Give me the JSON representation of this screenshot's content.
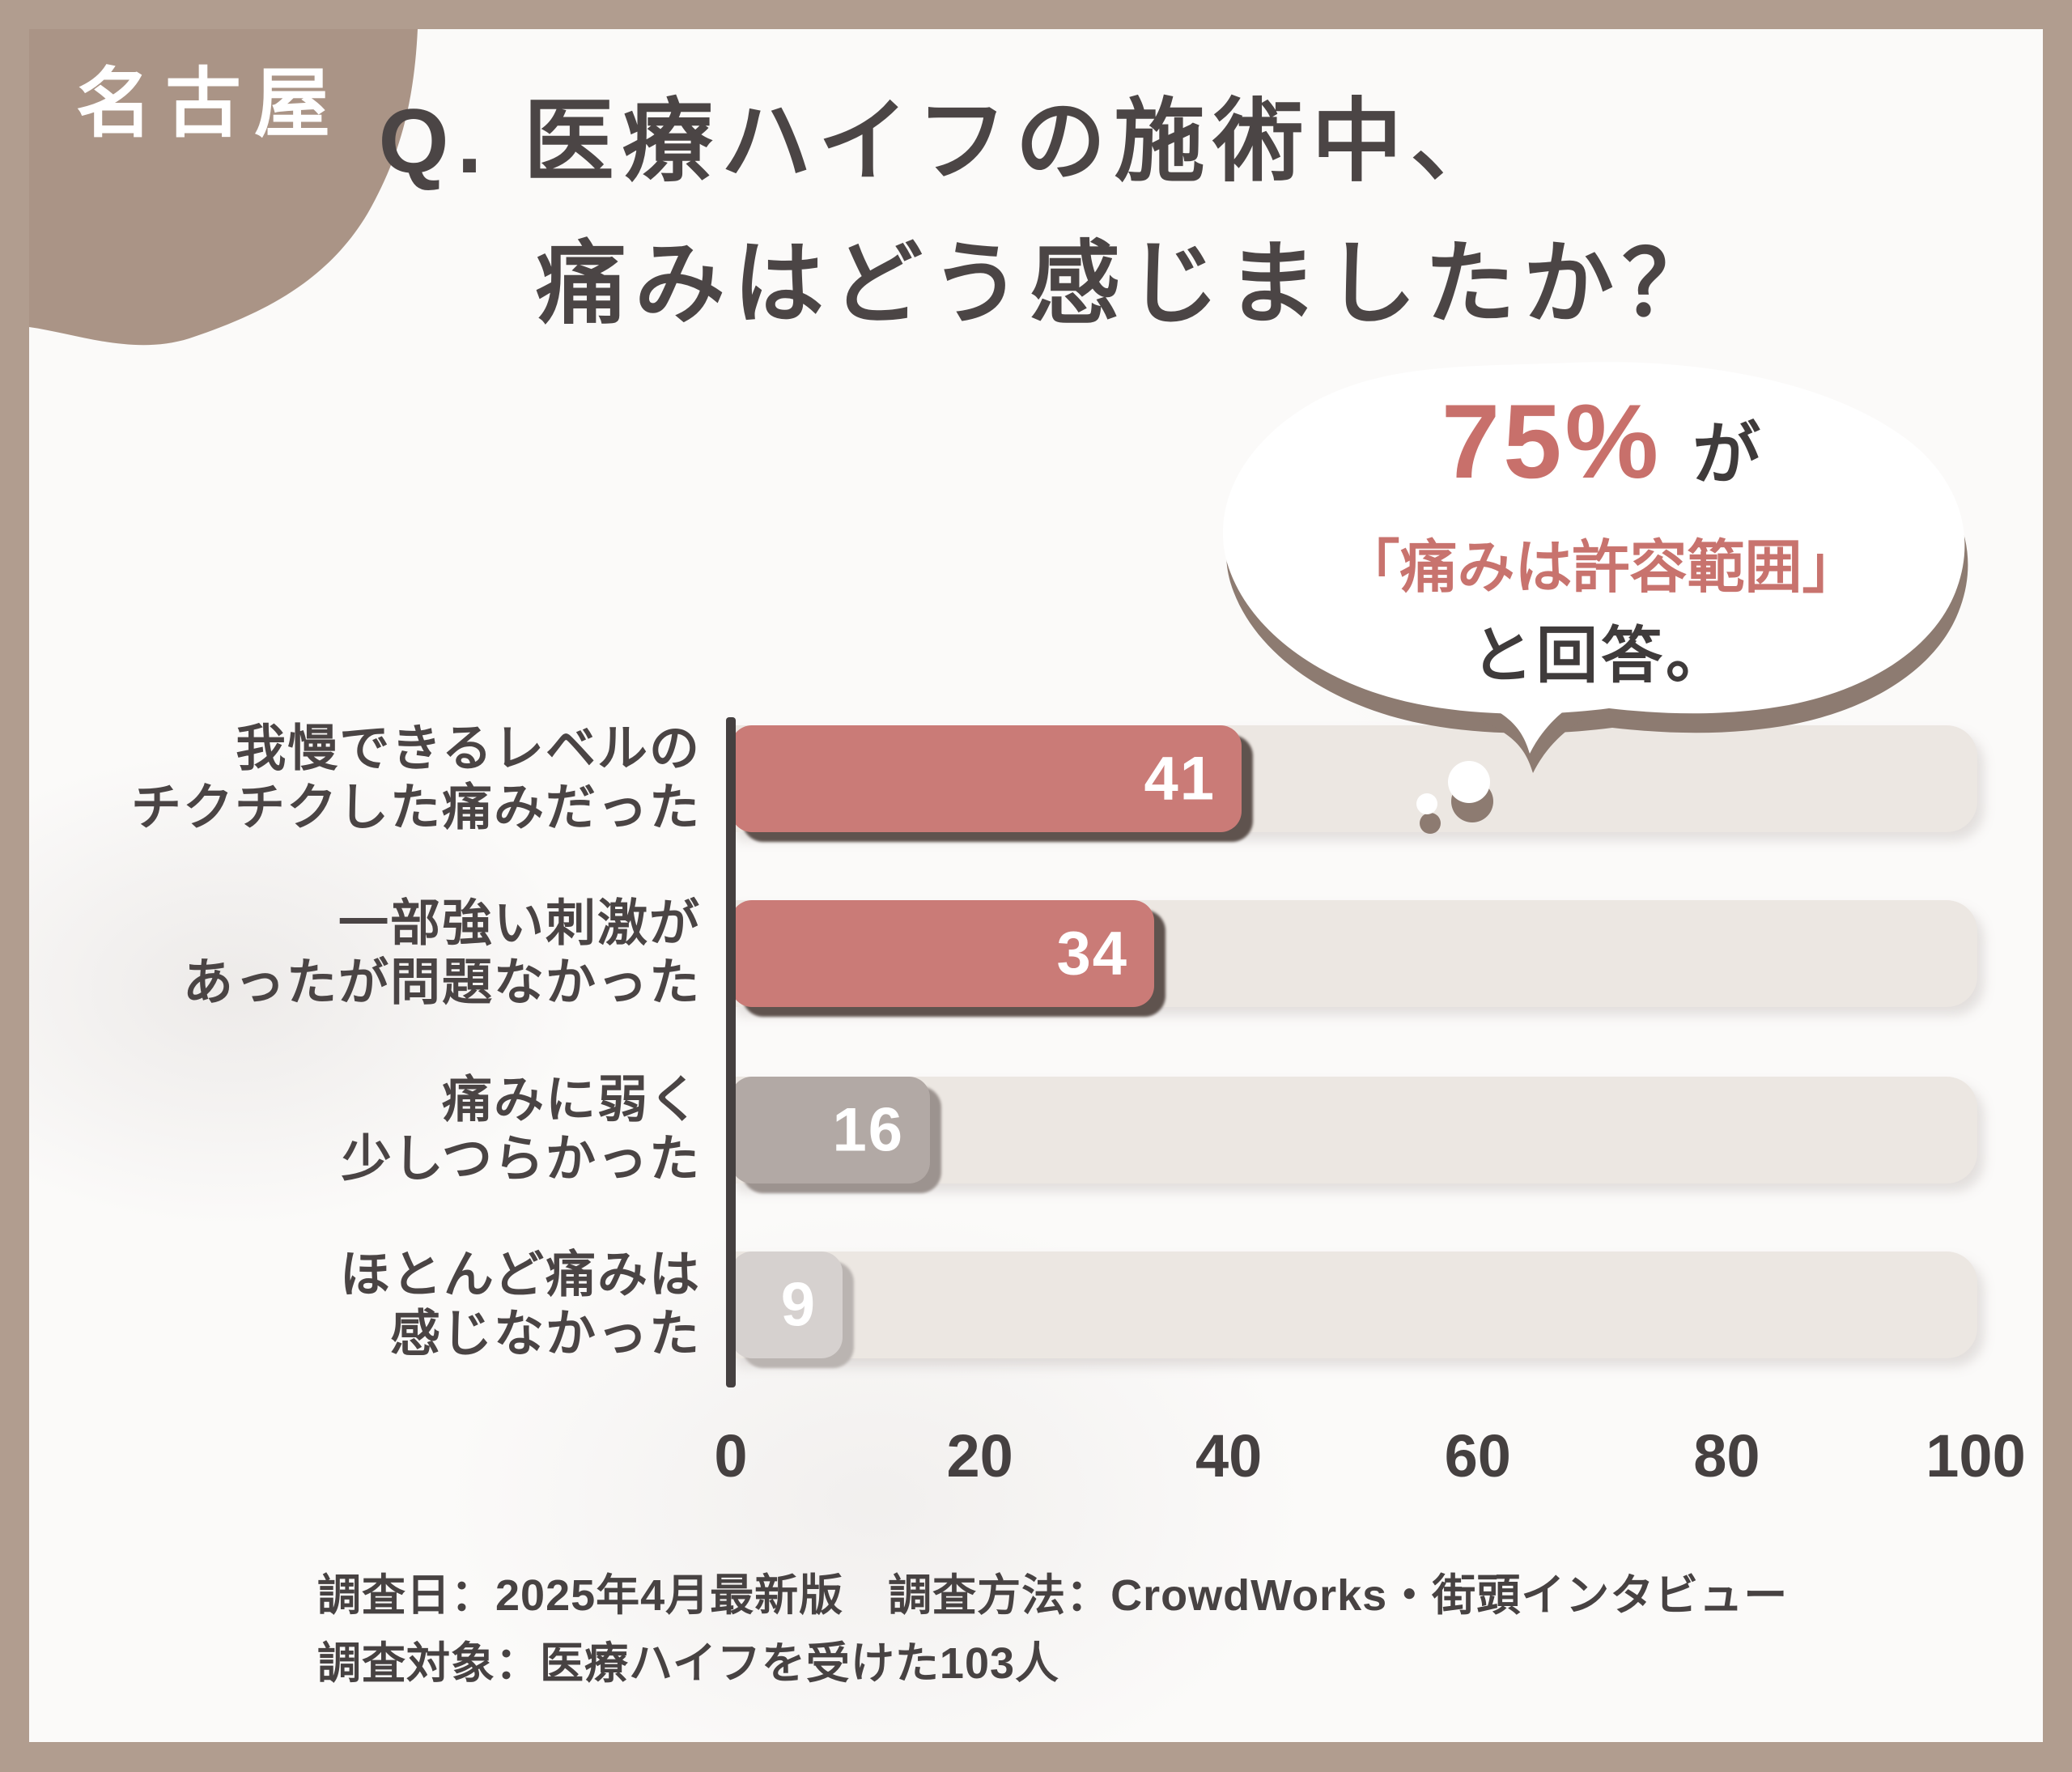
{
  "badge": {
    "label": "名古屋"
  },
  "title": {
    "line1": "Q. 医療ハイフの施術中、",
    "line2": "痛みはどう感じましたか？"
  },
  "callout": {
    "stat": "75%",
    "particle": "が",
    "quote": "「痛みは許容範囲」",
    "suffix": "と回答。"
  },
  "chart_data": {
    "type": "bar",
    "orientation": "horizontal",
    "title": "Q. 医療ハイフの施術中、痛みはどう感じましたか？",
    "categories": [
      "我慢できるレベルの\nチクチクした痛みだった",
      "一部強い刺激が\nあったが問題なかった",
      "痛みに弱く\n少しつらかった",
      "ほとんど痛みは\n感じなかった"
    ],
    "values": [
      41,
      34,
      16,
      9
    ],
    "xlabel": "",
    "ylabel": "",
    "xlim": [
      0,
      100
    ],
    "xticks": [
      0,
      20,
      40,
      60,
      80,
      100
    ],
    "grid": false,
    "legend": false,
    "bar_colors": [
      "#ca7b77",
      "#ca7b77",
      "#b2a9a5",
      "#d6d1cf"
    ],
    "bar_shadow_colors": [
      "#5f534e",
      "#5f534e",
      "#9c938f",
      "#bab4b1"
    ],
    "track_color": "#ece7e2",
    "value_label_color": "#ffffff",
    "annotation": "75%が「痛みは許容範囲」と回答。"
  },
  "footer": {
    "line1": "調査日：2025年4月最新版　調査方法：CrowdWorks・街頭インタビュー",
    "line2": "調査対象：医療ハイフを受けた103人"
  },
  "colors": {
    "frame": "#b19d8f",
    "blob": "#aa9486",
    "background": "#fbfaf9",
    "accent_red": "#c8706b",
    "dark_text": "#474242",
    "bubble_shadow": "#8d7b71"
  }
}
